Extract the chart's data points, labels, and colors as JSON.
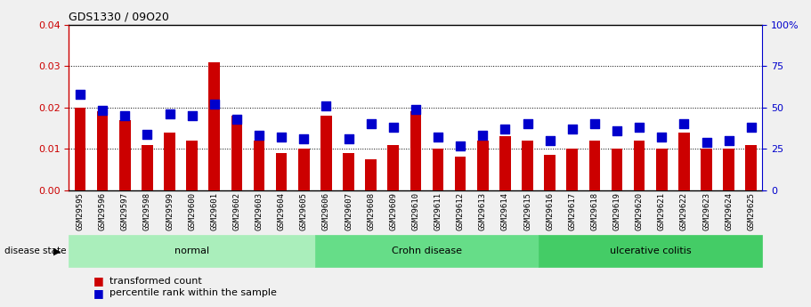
{
  "title": "GDS1330 / 09O20",
  "samples": [
    "GSM29595",
    "GSM29596",
    "GSM29597",
    "GSM29598",
    "GSM29599",
    "GSM29600",
    "GSM29601",
    "GSM29602",
    "GSM29603",
    "GSM29604",
    "GSM29605",
    "GSM29606",
    "GSM29607",
    "GSM29608",
    "GSM29609",
    "GSM29610",
    "GSM29611",
    "GSM29612",
    "GSM29613",
    "GSM29614",
    "GSM29615",
    "GSM29616",
    "GSM29617",
    "GSM29618",
    "GSM29619",
    "GSM29620",
    "GSM29621",
    "GSM29622",
    "GSM29623",
    "GSM29624",
    "GSM29625"
  ],
  "transformed_count": [
    0.02,
    0.019,
    0.017,
    0.011,
    0.014,
    0.012,
    0.031,
    0.018,
    0.012,
    0.009,
    0.01,
    0.018,
    0.009,
    0.0075,
    0.011,
    0.019,
    0.01,
    0.0082,
    0.012,
    0.013,
    0.012,
    0.0085,
    0.01,
    0.012,
    0.01,
    0.012,
    0.01,
    0.014,
    0.01,
    0.01,
    0.011
  ],
  "percentile_rank": [
    58,
    48,
    45,
    34,
    46,
    45,
    52,
    43,
    33,
    32,
    31,
    51,
    31,
    40,
    38,
    49,
    32,
    27,
    33,
    37,
    40,
    30,
    37,
    40,
    36,
    38,
    32,
    40,
    29,
    30,
    38
  ],
  "groups": [
    {
      "label": "normal",
      "start": 0,
      "end": 10,
      "color": "#aaeebb"
    },
    {
      "label": "Crohn disease",
      "start": 11,
      "end": 20,
      "color": "#66dd88"
    },
    {
      "label": "ulcerative colitis",
      "start": 21,
      "end": 30,
      "color": "#44cc66"
    }
  ],
  "bar_color": "#cc0000",
  "dot_color": "#0000cc",
  "ylim_left": [
    0,
    0.04
  ],
  "ylim_right": [
    0,
    100
  ],
  "yticks_left": [
    0,
    0.01,
    0.02,
    0.03,
    0.04
  ],
  "yticks_right": [
    0,
    25,
    50,
    75,
    100
  ],
  "plot_bg_color": "#ffffff",
  "fig_bg_color": "#f0f0f0",
  "dot_size": 45,
  "bar_width": 0.5,
  "n_samples": 31
}
